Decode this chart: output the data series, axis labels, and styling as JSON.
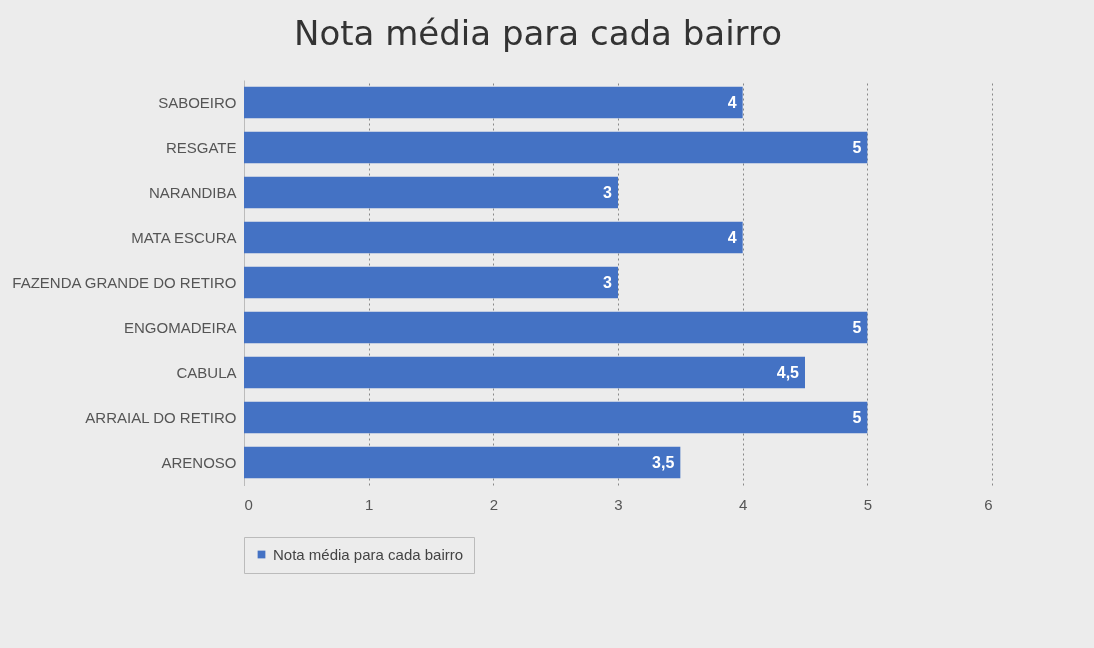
{
  "chart_data": {
    "type": "bar",
    "orientation": "horizontal",
    "title": "Nota média para cada bairro",
    "categories": [
      "SABOEIRO",
      "RESGATE",
      "NARANDIBA",
      "MATA ESCURA",
      "FAZENDA GRANDE DO RETIRO",
      "ENGOMADEIRA",
      "CABULA",
      "ARRAIAL DO RETIRO",
      "ARENOSO"
    ],
    "series": [
      {
        "name": "Nota média para cada bairro",
        "color": "#4472c4",
        "values": [
          4,
          5,
          3,
          4,
          3,
          5,
          4.5,
          5,
          3.5
        ],
        "value_labels": [
          "4",
          "5",
          "3",
          "4",
          "3",
          "5",
          "4,5",
          "5",
          "3,5"
        ]
      }
    ],
    "xlim": [
      0,
      6
    ],
    "xticks": [
      0,
      1,
      2,
      3,
      4,
      5,
      6
    ],
    "grid": "x",
    "legend": "bottom"
  }
}
